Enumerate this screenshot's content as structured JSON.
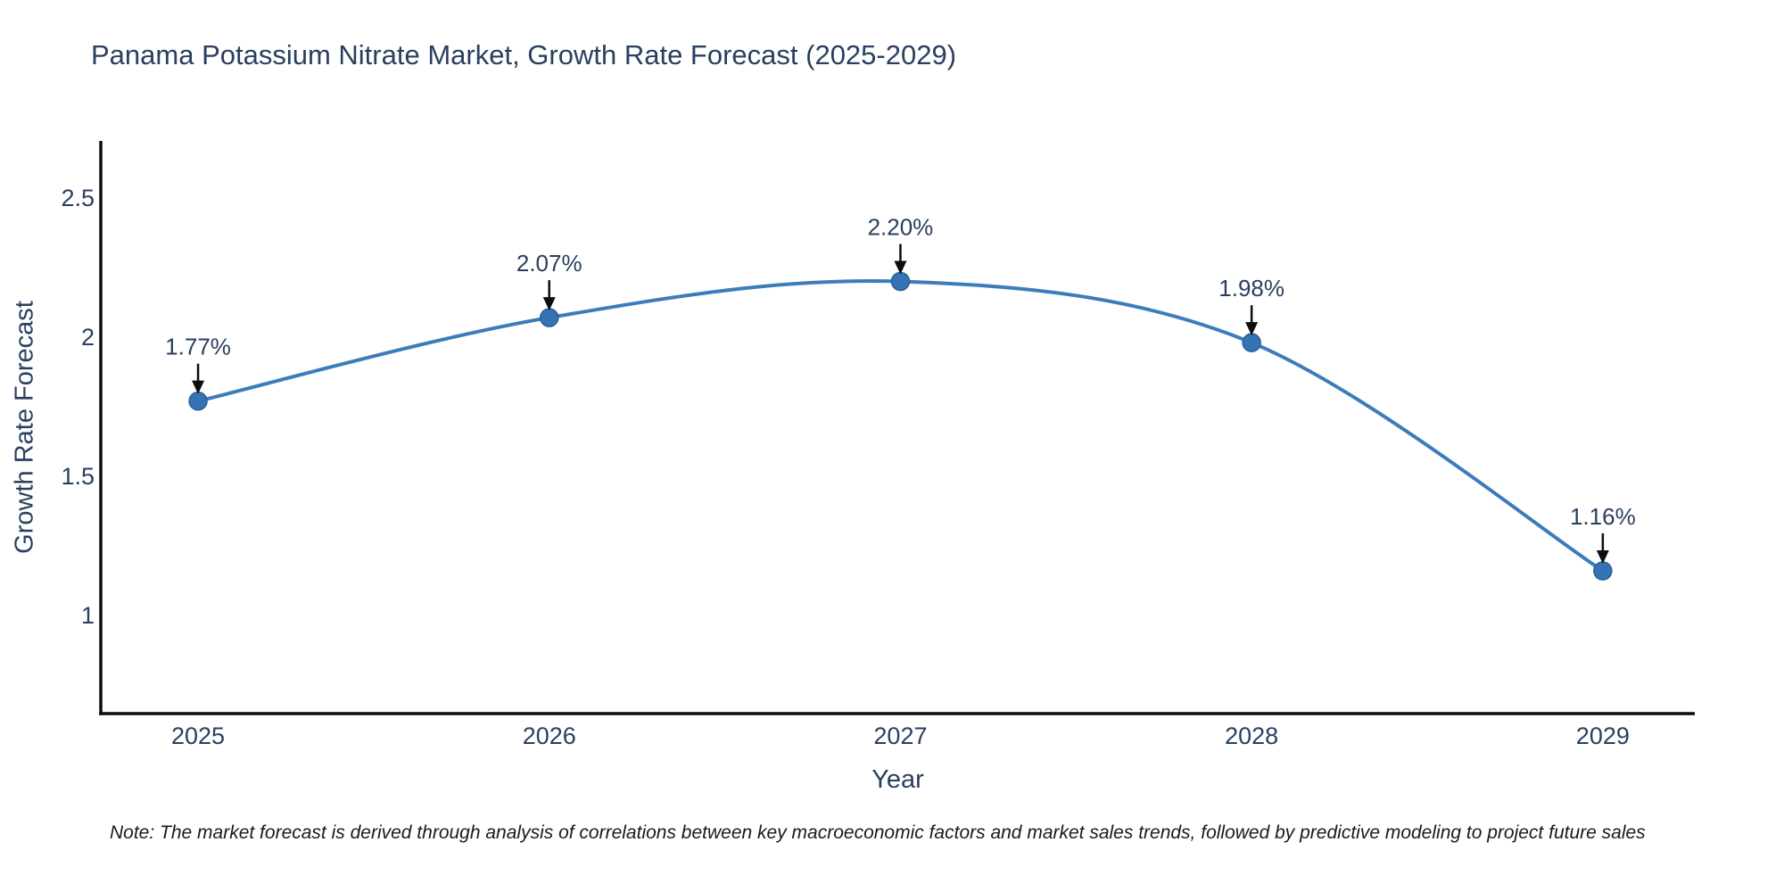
{
  "note": "Note: The market forecast is derived through analysis of correlations between key macroeconomic factors and market sales trends, followed by predictive modeling to project future sales",
  "chart_data": {
    "type": "line",
    "title": "Panama Potassium Nitrate Market, Growth Rate Forecast (2025-2029)",
    "xlabel": "Year",
    "ylabel": "Growth Rate Forecast",
    "x": [
      2025,
      2026,
      2027,
      2028,
      2029
    ],
    "values": [
      1.77,
      2.07,
      2.2,
      1.98,
      1.16
    ],
    "point_labels": [
      "1.77%",
      "2.07%",
      "2.20%",
      "1.98%",
      "1.16%"
    ],
    "x_ticks": [
      "2025",
      "2026",
      "2027",
      "2028",
      "2029"
    ],
    "y_ticks": [
      1,
      1.5,
      2,
      2.5
    ],
    "xlim": [
      2024.723,
      2029.262
    ],
    "ylim": [
      0.647,
      2.705
    ],
    "line_smooth": true,
    "grid": false,
    "legend": "none",
    "colors": {
      "line": "#3d7cba",
      "marker_fill": "#3474b3",
      "marker_edge": "#2a5e94",
      "axis": "#0d0d0d",
      "text": "#2a3f5f",
      "annotation_text": "#2a3f5f",
      "annotation_arrow": "#0d0d0d",
      "note_text": "#1a1a1a",
      "background": "#ffffff"
    }
  }
}
